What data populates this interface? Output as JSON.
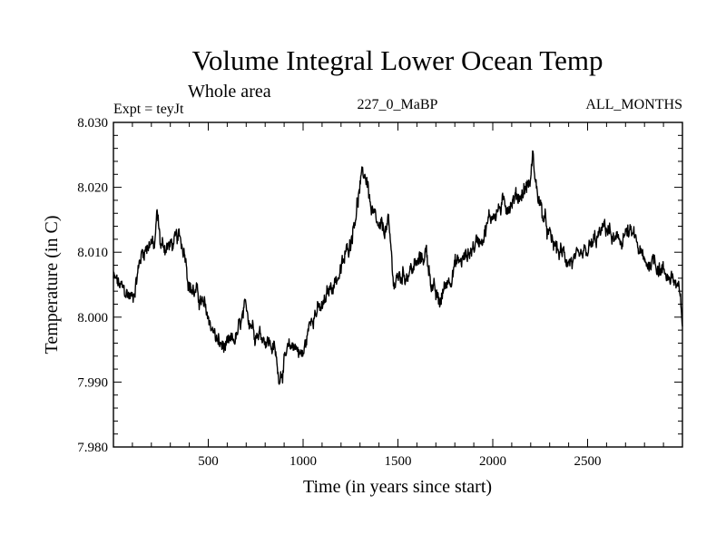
{
  "chart_data": {
    "type": "line",
    "title": "Volume Integral Lower Ocean Temp",
    "subtitle": "Whole area",
    "experiment": "Expt = teyJt",
    "run": "227_0_MaBP",
    "months": "ALL_MONTHS",
    "xlabel": "Time (in years since start)",
    "ylabel": "Temperature (in C)",
    "xlim": [
      0,
      3000
    ],
    "ylim": [
      7.98,
      8.03
    ],
    "x_ticks": [
      500,
      1000,
      1500,
      2000,
      2500
    ],
    "x_tick_labels": [
      "500",
      "1000",
      "1500",
      "2000",
      "2500"
    ],
    "y_ticks": [
      7.98,
      7.99,
      8.0,
      8.01,
      8.02,
      8.03
    ],
    "y_tick_labels": [
      "7.980",
      "7.990",
      "8.000",
      "8.010",
      "8.020",
      "8.030"
    ],
    "grid": false,
    "series": [
      {
        "name": "Volume integral lower ocean temperature",
        "color": "#000000",
        "x": [
          0,
          50,
          100,
          150,
          200,
          215,
          230,
          250,
          300,
          350,
          380,
          400,
          450,
          500,
          550,
          600,
          650,
          700,
          750,
          800,
          850,
          870,
          900,
          950,
          1000,
          1050,
          1100,
          1150,
          1200,
          1250,
          1300,
          1320,
          1340,
          1360,
          1400,
          1450,
          1480,
          1500,
          1550,
          1600,
          1650,
          1680,
          1700,
          1720,
          1750,
          1800,
          1850,
          1900,
          1950,
          2000,
          2050,
          2100,
          2150,
          2200,
          2210,
          2230,
          2260,
          2300,
          2350,
          2400,
          2450,
          2500,
          2550,
          2600,
          2650,
          2700,
          2750,
          2800,
          2850,
          2900,
          2950,
          2980,
          3000
        ],
        "values": [
          8.006,
          8.004,
          8.003,
          8.01,
          8.012,
          8.01,
          8.016,
          8.011,
          8.011,
          8.012,
          8.01,
          8.005,
          8.003,
          8.0,
          7.996,
          7.995,
          7.997,
          8.001,
          7.998,
          7.997,
          7.995,
          7.991,
          7.993,
          7.996,
          7.994,
          8.001,
          8.001,
          8.005,
          8.007,
          8.012,
          8.02,
          8.022,
          8.021,
          8.016,
          8.013,
          8.014,
          8.005,
          8.006,
          8.007,
          8.008,
          8.01,
          8.005,
          8.003,
          8.002,
          8.005,
          8.008,
          8.009,
          8.011,
          8.013,
          8.016,
          8.017,
          8.018,
          8.019,
          8.021,
          8.025,
          8.02,
          8.016,
          8.012,
          8.01,
          8.009,
          8.008,
          8.01,
          8.012,
          8.014,
          8.011,
          8.013,
          8.012,
          8.008,
          8.009,
          8.007,
          8.006,
          8.004,
          7.999
        ]
      }
    ]
  }
}
